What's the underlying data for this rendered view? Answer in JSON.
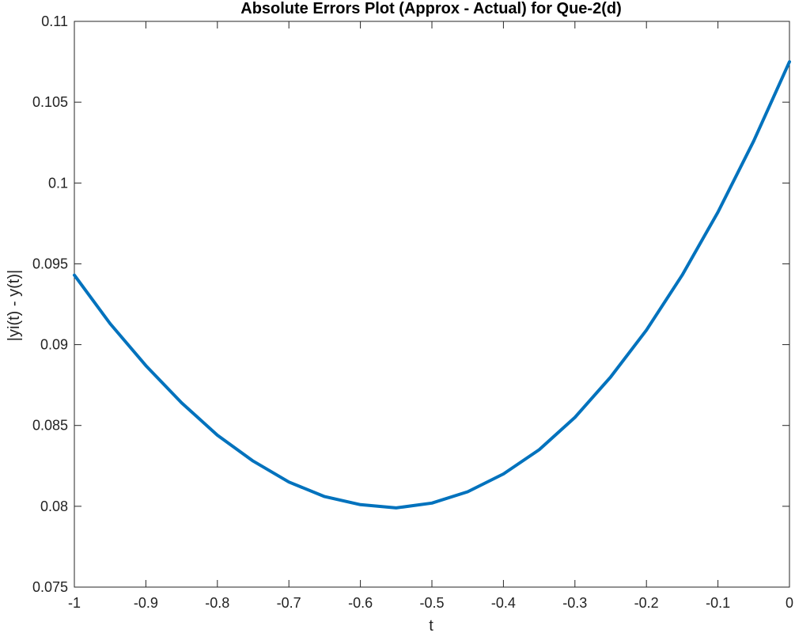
{
  "chart_data": {
    "type": "line",
    "title": "Absolute Errors Plot (Approx - Actual) for Que-2(d)",
    "xlabel": "t",
    "ylabel": "|yi(t) - y(t)|",
    "xlim": [
      -1,
      0
    ],
    "ylim": [
      0.075,
      0.11
    ],
    "xticks": [
      -1,
      -0.9,
      -0.8,
      -0.7,
      -0.6,
      -0.5,
      -0.4,
      -0.3,
      -0.2,
      -0.1,
      0
    ],
    "xtick_labels": [
      "-1",
      "-0.9",
      "-0.8",
      "-0.7",
      "-0.6",
      "-0.5",
      "-0.4",
      "-0.3",
      "-0.2",
      "-0.1",
      "0"
    ],
    "yticks": [
      0.075,
      0.08,
      0.085,
      0.09,
      0.095,
      0.1,
      0.105,
      0.11
    ],
    "ytick_labels": [
      "0.075",
      "0.08",
      "0.085",
      "0.09",
      "0.095",
      "0.1",
      "0.105",
      "0.11"
    ],
    "grid": false,
    "line_color": "#0072BD",
    "series": [
      {
        "x": [
          -1,
          -0.95,
          -0.9,
          -0.85,
          -0.8,
          -0.75,
          -0.7,
          -0.65,
          -0.6,
          -0.55,
          -0.5,
          -0.45,
          -0.4,
          -0.35,
          -0.3,
          -0.25,
          -0.2,
          -0.15,
          -0.1,
          -0.05,
          0
        ],
        "y": [
          0.0943,
          0.0913,
          0.0887,
          0.0864,
          0.0844,
          0.0828,
          0.0815,
          0.0806,
          0.0801,
          0.0799,
          0.0802,
          0.0809,
          0.082,
          0.0835,
          0.0855,
          0.088,
          0.0909,
          0.0943,
          0.0982,
          0.1026,
          0.1075
        ]
      }
    ]
  }
}
